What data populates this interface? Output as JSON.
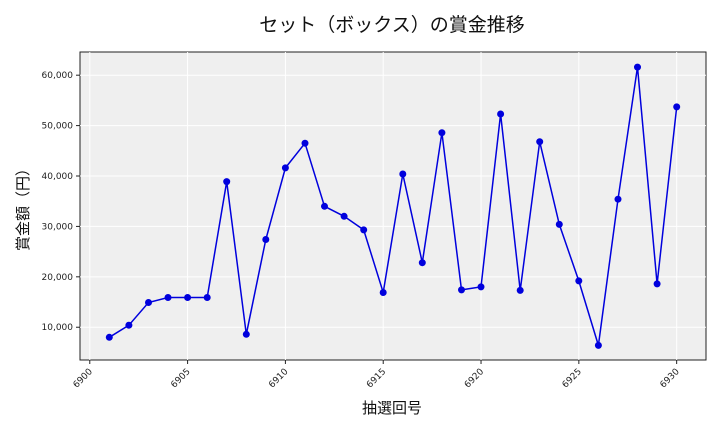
{
  "chart_data": {
    "type": "line",
    "title": "セット（ボックス）の賞金推移",
    "xlabel": "抽選回号",
    "ylabel": "賞金額（円）",
    "x": [
      6901,
      6902,
      6903,
      6904,
      6905,
      6906,
      6907,
      6908,
      6909,
      6910,
      6911,
      6912,
      6913,
      6914,
      6915,
      6916,
      6917,
      6918,
      6919,
      6920,
      6921,
      6922,
      6923,
      6924,
      6925,
      6926,
      6927,
      6928,
      6929,
      6930
    ],
    "series": [
      {
        "name": "賞金額",
        "color": "#0000dd",
        "values": [
          8000,
          10400,
          14900,
          15900,
          15900,
          15900,
          38900,
          8600,
          27400,
          41600,
          46500,
          34000,
          32000,
          29300,
          16900,
          40400,
          22800,
          48600,
          17400,
          18000,
          52300,
          17300,
          46800,
          30400,
          19200,
          6400,
          35400,
          61600,
          18600,
          53700
        ]
      }
    ],
    "xticks": [
      6900,
      6905,
      6910,
      6915,
      6920,
      6925,
      6930
    ],
    "yticks": [
      10000,
      20000,
      30000,
      40000,
      50000,
      60000
    ],
    "ytick_labels": [
      "10,000",
      "20,000",
      "30,000",
      "40,000",
      "50,000",
      "60,000"
    ],
    "xlim": [
      6899.5,
      6931.5
    ],
    "ylim": [
      3500,
      64600
    ],
    "grid": true,
    "legend": false
  }
}
